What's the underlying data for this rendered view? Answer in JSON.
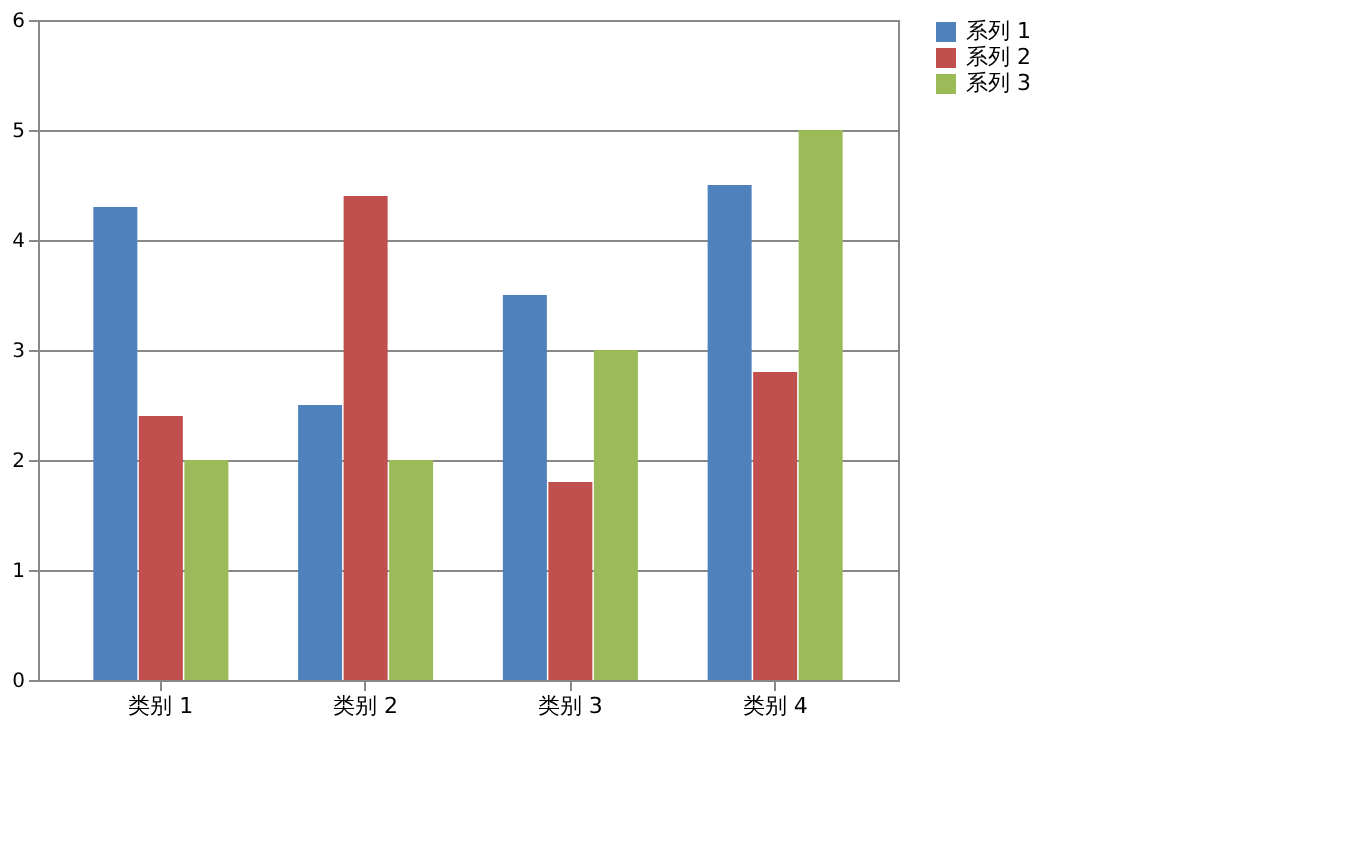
{
  "chart_data": {
    "type": "bar",
    "categories": [
      "类别 1",
      "类别 2",
      "类别 3",
      "类别 4"
    ],
    "series": [
      {
        "name": "系列 1",
        "color": "#4f81bd",
        "values": [
          4.3,
          2.5,
          3.5,
          4.5
        ]
      },
      {
        "name": "系列 2",
        "color": "#c0504d",
        "values": [
          2.4,
          4.4,
          1.8,
          2.8
        ]
      },
      {
        "name": "系列 3",
        "color": "#9bbb59",
        "values": [
          2,
          2,
          3,
          5
        ]
      }
    ],
    "ylim": [
      0,
      6
    ],
    "yticks": [
      0,
      1,
      2,
      3,
      4,
      5,
      6
    ],
    "grid": "y",
    "legend": "right"
  }
}
